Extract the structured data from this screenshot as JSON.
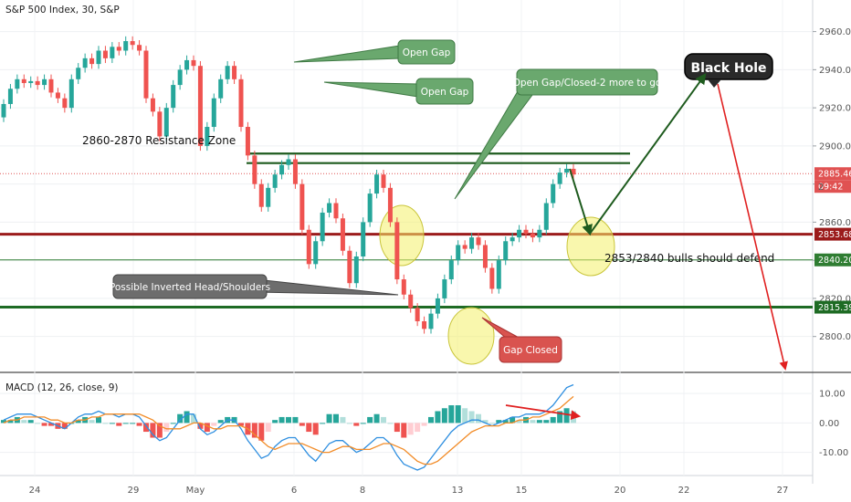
{
  "chart_data": [
    {
      "type": "candlestick",
      "title": "S&P 500 Index, 30, S&P",
      "xlabel": "",
      "ylabel": "",
      "ylim": [
        2785,
        2967
      ],
      "yticks": [
        2800,
        2820,
        2840,
        2860,
        2880,
        2900,
        2920,
        2940,
        2960
      ],
      "xticks": [
        "24",
        "29",
        "May",
        "6",
        "8",
        "13",
        "15",
        "20",
        "22",
        "27"
      ],
      "price_labels": [
        {
          "text": "2885.46",
          "value": 2885.46,
          "color": "#e05252"
        },
        {
          "text": "09:42",
          "color": "#e05252"
        },
        {
          "text": "2853.68",
          "value": 2853.68,
          "color": "#9b1b1b"
        },
        {
          "text": "2840.20",
          "value": 2840.2,
          "color": "#2f7d32"
        },
        {
          "text": "2815.39",
          "value": 2815.39,
          "color": "#1e6b24"
        }
      ],
      "levels": [
        {
          "value": 2853.68,
          "color": "#9b1b1b",
          "style": "thick"
        },
        {
          "value": 2840.2,
          "color": "#2f7d32",
          "style": "thin"
        },
        {
          "value": 2815.39,
          "color": "#1e6b24",
          "style": "thick"
        },
        {
          "value": 2885.46,
          "color": "#e05252",
          "style": "dotted"
        },
        {
          "value": 2896,
          "color": "#1e5b1e",
          "style": "zone"
        },
        {
          "value": 2891,
          "color": "#1e5b1e",
          "style": "zone"
        }
      ],
      "series": [
        {
          "points": [
            [
              2915,
              2922
            ],
            [
              2922,
              2930
            ],
            [
              2930,
              2935
            ],
            [
              2935,
              2933
            ],
            [
              2933,
              2934
            ],
            [
              2934,
              2932
            ],
            [
              2932,
              2935
            ],
            [
              2935,
              2928
            ],
            [
              2928,
              2925
            ],
            [
              2925,
              2920
            ],
            [
              2920,
              2935
            ],
            [
              2935,
              2941
            ],
            [
              2941,
              2946
            ],
            [
              2946,
              2943
            ],
            [
              2943,
              2950
            ],
            [
              2950,
              2946
            ],
            [
              2946,
              2952
            ],
            [
              2952,
              2950
            ],
            [
              2950,
              2955
            ],
            [
              2955,
              2953
            ],
            [
              2953,
              2950
            ],
            [
              2950,
              2925
            ],
            [
              2925,
              2918
            ],
            [
              2918,
              2905
            ],
            [
              2905,
              2920
            ],
            [
              2920,
              2932
            ],
            [
              2932,
              2940
            ],
            [
              2940,
              2945
            ],
            [
              2945,
              2942
            ],
            [
              2942,
              2900
            ],
            [
              2900,
              2910
            ],
            [
              2910,
              2925
            ],
            [
              2925,
              2935
            ],
            [
              2935,
              2942
            ],
            [
              2942,
              2935
            ],
            [
              2935,
              2910
            ],
            [
              2910,
              2895
            ],
            [
              2895,
              2880
            ],
            [
              2880,
              2868
            ],
            [
              2868,
              2878
            ],
            [
              2878,
              2885
            ],
            [
              2885,
              2890
            ],
            [
              2890,
              2893
            ],
            [
              2893,
              2880
            ],
            [
              2880,
              2856
            ],
            [
              2856,
              2838
            ],
            [
              2838,
              2850
            ],
            [
              2850,
              2865
            ],
            [
              2865,
              2870
            ],
            [
              2870,
              2862
            ],
            [
              2862,
              2845
            ],
            [
              2845,
              2828
            ],
            [
              2828,
              2842
            ],
            [
              2842,
              2860
            ],
            [
              2860,
              2875
            ],
            [
              2875,
              2885
            ],
            [
              2885,
              2878
            ],
            [
              2878,
              2860
            ],
            [
              2860,
              2830
            ],
            [
              2830,
              2822
            ],
            [
              2822,
              2815
            ],
            [
              2815,
              2808
            ],
            [
              2808,
              2804
            ],
            [
              2804,
              2812
            ],
            [
              2812,
              2820
            ],
            [
              2820,
              2830
            ],
            [
              2830,
              2840
            ],
            [
              2840,
              2848
            ],
            [
              2848,
              2846
            ],
            [
              2846,
              2852
            ],
            [
              2852,
              2848
            ],
            [
              2848,
              2836
            ],
            [
              2836,
              2825
            ],
            [
              2825,
              2840
            ],
            [
              2840,
              2850
            ],
            [
              2850,
              2852
            ],
            [
              2852,
              2856
            ],
            [
              2856,
              2854
            ],
            [
              2854,
              2852
            ],
            [
              2852,
              2856
            ],
            [
              2856,
              2870
            ],
            [
              2870,
              2880
            ],
            [
              2880,
              2886
            ],
            [
              2886,
              2888
            ],
            [
              2888,
              2885
            ]
          ]
        }
      ]
    },
    {
      "type": "line",
      "title": "MACD (12, 26, close, 9)",
      "xlabel": "",
      "ylabel": "",
      "ylim": [
        -16,
        15
      ],
      "yticks": [
        10,
        0,
        -10
      ],
      "ytick_labels": [
        "10.00",
        "0.00",
        "-10.00"
      ],
      "series": [
        {
          "name": "MACD",
          "color": "#2f8fe0",
          "values": [
            1,
            2,
            3,
            3,
            3,
            2,
            1,
            0,
            -1,
            -2,
            0,
            2,
            3,
            3,
            4,
            3,
            3,
            2,
            3,
            3,
            2,
            -1,
            -4,
            -6,
            -5,
            -2,
            1,
            3,
            3,
            -2,
            -4,
            -3,
            -1,
            1,
            1,
            -2,
            -6,
            -9,
            -12,
            -11,
            -8,
            -6,
            -5,
            -5,
            -8,
            -11,
            -13,
            -10,
            -7,
            -6,
            -6,
            -8,
            -10,
            -9,
            -7,
            -5,
            -5,
            -7,
            -11,
            -14,
            -15,
            -16,
            -15,
            -12,
            -9,
            -6,
            -3,
            -1,
            0,
            1,
            1,
            0,
            -1,
            0,
            1,
            2,
            2,
            3,
            3,
            3,
            4,
            6,
            9,
            12,
            13
          ]
        },
        {
          "name": "Signal",
          "color": "#f28c28",
          "values": [
            0,
            1,
            1,
            2,
            2,
            2,
            2,
            1,
            1,
            0,
            0,
            1,
            1,
            2,
            2,
            3,
            3,
            3,
            3,
            3,
            3,
            2,
            1,
            -1,
            -2,
            -2,
            -2,
            -1,
            0,
            0,
            -1,
            -2,
            -2,
            -1,
            -1,
            -1,
            -2,
            -4,
            -6,
            -8,
            -9,
            -8,
            -7,
            -7,
            -7,
            -8,
            -9,
            -10,
            -10,
            -9,
            -8,
            -8,
            -9,
            -9,
            -9,
            -8,
            -7,
            -7,
            -8,
            -9,
            -11,
            -13,
            -14,
            -14,
            -13,
            -11,
            -9,
            -7,
            -5,
            -3,
            -2,
            -1,
            -1,
            -1,
            0,
            0,
            1,
            1,
            2,
            2,
            3,
            4,
            5,
            7,
            9
          ]
        }
      ]
    }
  ],
  "annotations": {
    "open_gap_1": "Open Gap",
    "open_gap_2": "Open Gap",
    "open_gap_closed": "Open Gap/Closed-2 more to go",
    "black_hole": "Black Hole",
    "resistance_zone": "2860-2870 Resistance Zone",
    "inverted_hs": "Possible Inverted Head/Shoulders",
    "gap_closed": "Gap Closed",
    "bulls_defend": "2853/2840 bulls should defend",
    "partial_price": "2"
  },
  "colors": {
    "up": "#26a69a",
    "down": "#ef5350",
    "green_callout": "#6aa86e",
    "red_callout": "#d9534f",
    "highlight": "#f4f169"
  }
}
